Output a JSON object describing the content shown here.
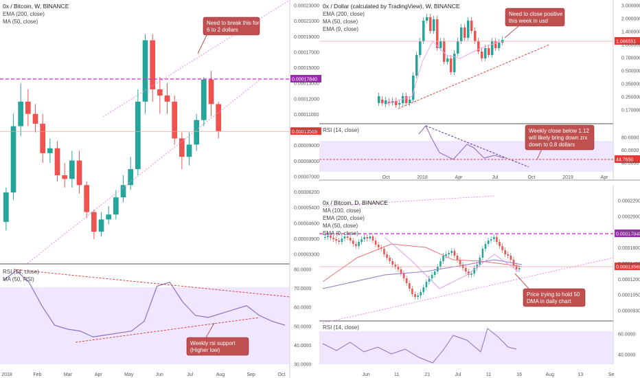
{
  "colors": {
    "up": "#26a69a",
    "down": "#ef5350",
    "rsi_band": "#e9dcff",
    "rsi_line": "#8e6fc7",
    "ema200": "#e57373",
    "ma50": "#c792ea",
    "ma100": "#9575cd",
    "level": "#d020d0",
    "note_bg": "#c05050",
    "price_tag": "#e53935",
    "level_tag": "#9c27b0"
  },
  "charts": [
    {
      "id": "left",
      "title": "0x / Bitcoin, W, BINANCE",
      "legend": [
        "EMA (200, close)",
        "MA (50, close)"
      ],
      "y_ticks": [
        "0.00023000",
        "0.00021000",
        "0.00019000",
        "0.00017000",
        "0.00015000",
        "0.00013000",
        "0.00012000",
        "0.00011000",
        "0.00010000",
        "0.00009000",
        "0.00008000",
        "0.00007000",
        "0.00006200",
        "0.00005400",
        "0.00004600",
        "0.00003900",
        "0.00003300"
      ],
      "price_tag": "0.00013569",
      "level_tag": "0.00017840",
      "note": [
        "Need to break this for 1.",
        "6 to 2 dollars"
      ],
      "rsi_title": "RSI (14, close)",
      "rsi_ma_title": "MA (50, RSI)",
      "rsi_ticks": [
        "80.0000",
        "70.0000",
        "60.0000",
        "50.0000",
        "40.0000",
        "30.0000"
      ],
      "rsi_note": [
        "Weekly rsi  support",
        "(Higher low)"
      ],
      "x_ticks": [
        "2018",
        "Feb",
        "Mar",
        "Apr",
        "May",
        "Jun",
        "Jul",
        "Aug",
        "Sep",
        "Oct"
      ]
    },
    {
      "id": "top-right",
      "title": "0x / Dollar (calculated by TradingView), W, BINANCE",
      "legend": [
        "EMA (200, close)",
        "MA (50, close)",
        "EMA (9, close)"
      ],
      "y_ticks": [
        "3.000000",
        "2.000000",
        "1.400000",
        "1.000000",
        "0.700000",
        "0.500000",
        "0.350000",
        "0.250000",
        "0.170000"
      ],
      "price_tag": "1.066551",
      "note": [
        "Need to close positive",
        "this week in usd"
      ],
      "rsi_title": "RSI (14, close)",
      "rsi_ticks": [
        "80.0000",
        "60.0000",
        "40.0000"
      ],
      "rsi_tag": "44.7650",
      "rsi_note": [
        "Weekly close below 1.12",
        "will likely bring down zrx",
        "down to 0.8 dollars"
      ],
      "x_ticks": [
        "Oct",
        "2018",
        "Apr",
        "Jul",
        "Oct",
        "2019",
        "Apr"
      ]
    },
    {
      "id": "bottom-right",
      "title": "0x / Bitcoin, D, BINANCE",
      "legend": [
        "MA (100, close)",
        "EMA (200, close)",
        "MA (50, close)",
        "EMA (9, close)"
      ],
      "y_ticks": [
        "0.00022000",
        "0.00020000",
        "0.00018000",
        "0.00016000",
        "0.00014000",
        "0.00012000",
        "0.00010500",
        "0.00009300"
      ],
      "price_tag": "0.00013569",
      "level_tag": "0.00017840",
      "note": [
        "Price trying to hold 50",
        "DMA in daily chart"
      ],
      "rsi_title": "RSI (14, close)",
      "rsi_ticks": [
        "60.0000",
        "40.0000"
      ],
      "x_ticks": [
        "Jun",
        "11",
        "21",
        "Jul",
        "11",
        "16",
        "Aug",
        "13",
        "Se"
      ]
    }
  ],
  "chart_data": [
    {
      "type": "candlestick",
      "title": "0x / Bitcoin, W, BINANCE",
      "candles_approx_ohlc": [
        [
          6.2e-05,
          8.6e-05,
          5.5e-05,
          9e-05
        ],
        [
          8.6e-05,
          0.00014,
          8e-05,
          0.00015
        ],
        [
          0.00014,
          0.00016,
          0.000132,
          0.000175
        ],
        [
          0.00016,
          0.00015,
          0.00014,
          0.00017
        ],
        [
          0.00015,
          0.000142,
          0.000135,
          0.000158
        ],
        [
          0.000142,
          0.000118,
          0.00011,
          0.00015
        ],
        [
          0.000118,
          0.000122,
          0.00011,
          0.00013
        ],
        [
          0.000122,
          0.0001,
          9.5e-05,
          0.000128
        ],
        [
          0.0001,
          9.7e-05,
          9e-05,
          0.00011
        ],
        [
          9.7e-05,
          0.000112,
          9e-05,
          0.00012
        ],
        [
          0.000112,
          9.2e-05,
          8.5e-05,
          0.00012
        ],
        [
          9.2e-05,
          7e-05,
          6.5e-05,
          9.5e-05
        ],
        [
          7e-05,
          5.4e-05,
          4.8e-05,
          7.2e-05
        ],
        [
          5.4e-05,
          6.4e-05,
          5e-05,
          7e-05
        ],
        [
          6.4e-05,
          6.8e-05,
          6e-05,
          7.5e-05
        ],
        [
          6.8e-05,
          8.2e-05,
          6.4e-05,
          8.8e-05
        ],
        [
          8.2e-05,
          9.2e-05,
          7.8e-05,
          0.0001
        ],
        [
          9.2e-05,
          0.000105,
          8.8e-05,
          0.000115
        ],
        [
          0.000105,
          0.00016,
          0.0001,
          0.00017
        ],
        [
          0.00016,
          0.00021,
          0.00015,
          0.000215
        ],
        [
          0.00021,
          0.00017,
          0.00016,
          0.000215
        ],
        [
          0.00017,
          0.000165,
          0.00015,
          0.00018
        ],
        [
          0.000165,
          0.00016,
          0.00015,
          0.000175
        ],
        [
          0.00016,
          0.00013,
          0.000125,
          0.000165
        ],
        [
          0.00013,
          0.000115,
          0.000105,
          0.000135
        ],
        [
          0.000115,
          0.000125,
          0.000108,
          0.000135
        ],
        [
          0.000125,
          0.000145,
          0.00012,
          0.00015
        ],
        [
          0.000145,
          0.000178,
          0.00014,
          0.00018
        ],
        [
          0.000178,
          0.000158,
          0.000148,
          0.000185
        ],
        [
          0.000158,
          0.000136,
          0.00013,
          0.00016
        ]
      ],
      "ylim": [
        3e-05,
        0.00024
      ],
      "reference_level": 0.0001784,
      "last_price": 0.00013569,
      "rsi_series": [
        73,
        78,
        72,
        60,
        50,
        48,
        47,
        44,
        45,
        46,
        47,
        52,
        70,
        72,
        62,
        55,
        54,
        56,
        58,
        60,
        55,
        52,
        50
      ]
    },
    {
      "type": "candlestick",
      "title": "0x / Dollar (calculated by TradingView), W, BINANCE",
      "ylim": [
        0.15,
        3.2
      ],
      "last_price": 1.066551,
      "rsi_last": 44.765
    },
    {
      "type": "candlestick",
      "title": "0x / Bitcoin, D, BINANCE",
      "ylim": [
        9e-05,
        0.00022
      ],
      "reference_level": 0.0001784,
      "last_price": 0.00013569
    }
  ]
}
